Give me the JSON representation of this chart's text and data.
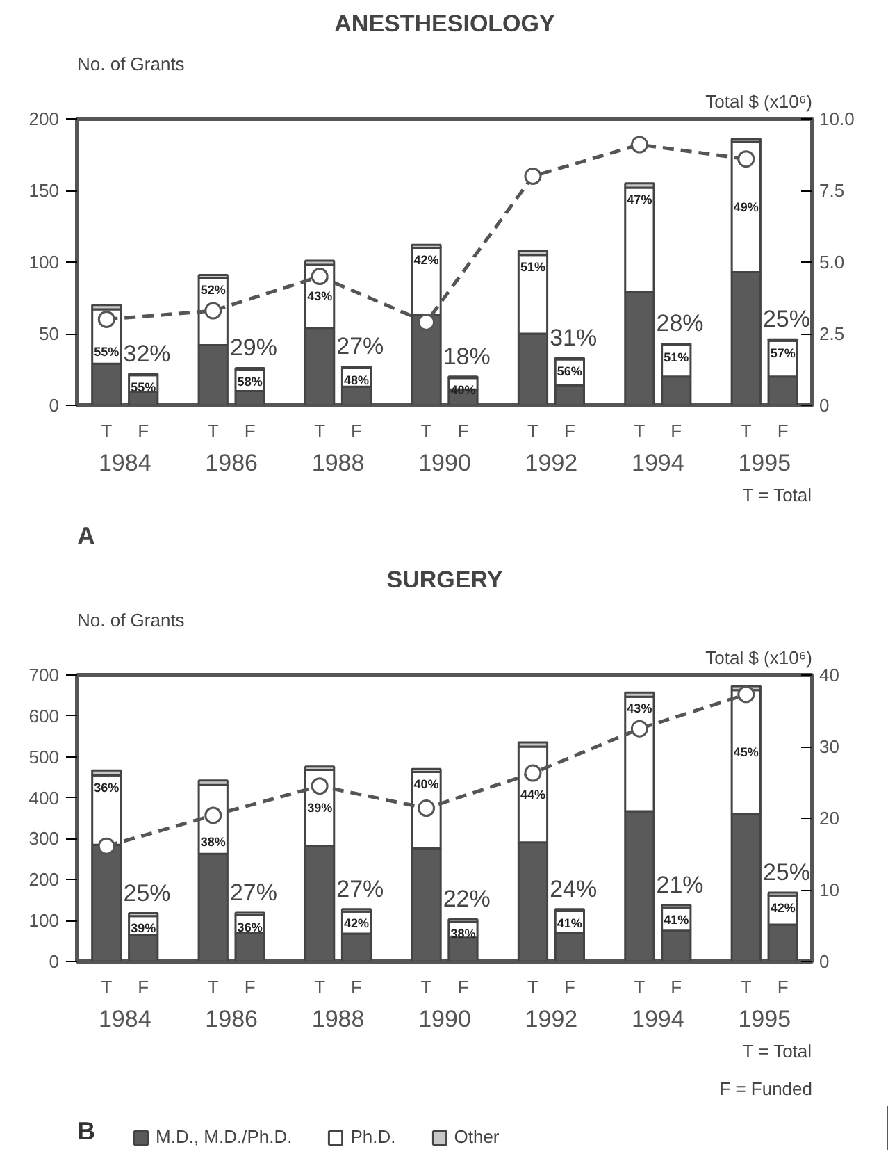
{
  "chart_data": [
    {
      "type": "bar",
      "title": "ANESTHESIOLOGY",
      "ylabel": "No. of Grants",
      "y2label": "Total $ (x10⁶)",
      "stacked": true,
      "grid": false,
      "legend": false,
      "categories": [
        "T",
        "F",
        "T",
        "F",
        "T",
        "F",
        "T",
        "F",
        "T",
        "F",
        "T",
        "F",
        "T",
        "F"
      ],
      "series": [
        {
          "color": "#5a5a5a",
          "values": [
            29,
            9,
            42,
            10,
            54,
            13,
            63,
            11,
            50,
            14,
            79,
            20,
            93,
            20
          ]
        },
        {
          "color": "#ffffff",
          "values": [
            38,
            12,
            47,
            15,
            44,
            13,
            47,
            8,
            55,
            18,
            73,
            22,
            91,
            25
          ]
        },
        {
          "color": "#c8c8c8",
          "values": [
            3,
            1,
            2,
            1,
            3,
            1,
            2,
            1,
            3,
            1,
            3,
            1,
            2,
            1
          ]
        },
        {
          "type": "line",
          "axis": "y2",
          "color": "#555555",
          "line_style": "dashed",
          "marker": "circle",
          "values": [
            3.0,
            null,
            3.3,
            null,
            4.5,
            null,
            2.9,
            null,
            8.0,
            null,
            9.1,
            null,
            8.6,
            null
          ]
        }
      ],
      "ylim": [
        0,
        200
      ],
      "yticks": [
        0,
        50,
        100,
        150,
        200
      ],
      "y2lim": [
        0,
        10
      ],
      "y2ticks": [
        0,
        2.5,
        {
          "value": 5,
          "label": "5.0"
        },
        7.5,
        {
          "value": 10,
          "label": "10.0"
        }
      ],
      "annotations": [
        "1984",
        "1986",
        "1988",
        "1990",
        "1992",
        "1994",
        "1995",
        "55%",
        "55%",
        "52%",
        "58%",
        "43%",
        "48%",
        "42%",
        "40%",
        "51%",
        "56%",
        "47%",
        "51%",
        "49%",
        "57%",
        "32%",
        "29%",
        "27%",
        "18%",
        "31%",
        "28%",
        "25%",
        "T = Total",
        "A"
      ]
    },
    {
      "type": "bar",
      "title": "SURGERY",
      "ylabel": "No. of Grants",
      "y2label": "Total $ (x10⁶)",
      "stacked": true,
      "grid": false,
      "legend": "bottom",
      "categories": [
        "T",
        "F",
        "T",
        "F",
        "T",
        "F",
        "T",
        "F",
        "T",
        "F",
        "T",
        "F",
        "T",
        "F"
      ],
      "series": [
        {
          "name": "M.D., M.D./Ph.D.",
          "color": "#5a5a5a",
          "values": [
            285,
            65,
            263,
            70,
            283,
            68,
            276,
            58,
            291,
            70,
            367,
            75,
            360,
            90
          ]
        },
        {
          "name": "Ph.D.",
          "color": "#ffffff",
          "values": [
            170,
            46,
            168,
            43,
            185,
            54,
            187,
            39,
            234,
            53,
            280,
            57,
            303,
            71
          ]
        },
        {
          "name": "Other",
          "color": "#c8c8c8",
          "values": [
            12,
            7,
            11,
            6,
            8,
            6,
            7,
            6,
            10,
            5,
            10,
            6,
            10,
            7
          ]
        },
        {
          "type": "line",
          "axis": "y2",
          "color": "#555555",
          "line_style": "dashed",
          "marker": "circle",
          "values": [
            16.1,
            null,
            20.4,
            null,
            24.5,
            null,
            21.4,
            null,
            26.3,
            null,
            32.5,
            null,
            37.3,
            null
          ]
        }
      ],
      "ylim": [
        0,
        700
      ],
      "yticks": [
        0,
        100,
        200,
        300,
        400,
        500,
        600,
        700
      ],
      "y2lim": [
        0,
        40
      ],
      "y2ticks": [
        0,
        10,
        20,
        30,
        40
      ],
      "annotations": [
        "1984",
        "1986",
        "1988",
        "1990",
        "1992",
        "1994",
        "1995",
        "36%",
        "39%",
        "38%",
        "36%",
        "39%",
        "42%",
        "40%",
        "38%",
        "44%",
        "41%",
        "43%",
        "41%",
        "45%",
        "42%",
        "25%",
        "27%",
        "27%",
        "22%",
        "24%",
        "21%",
        "25%",
        "T = Total",
        "F = Funded",
        "B"
      ]
    }
  ]
}
